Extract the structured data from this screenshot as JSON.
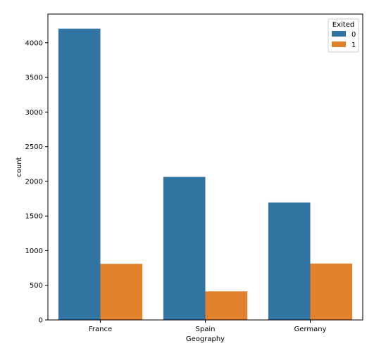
{
  "chart_data": {
    "type": "bar",
    "categories": [
      "France",
      "Spain",
      "Germany"
    ],
    "series": [
      {
        "name": "0",
        "values": [
          4204,
          2064,
          1695
        ]
      },
      {
        "name": "1",
        "values": [
          810,
          413,
          814
        ]
      }
    ],
    "xlabel": "Geography",
    "ylabel": "count",
    "ylim": [
      0,
      4414
    ],
    "yticks": [
      0,
      500,
      1000,
      1500,
      2000,
      2500,
      3000,
      3500,
      4000
    ],
    "legend": {
      "title": "Exited",
      "placement": "top-right"
    },
    "grid": false,
    "colors": [
      "#3274a1",
      "#e1812c"
    ]
  }
}
